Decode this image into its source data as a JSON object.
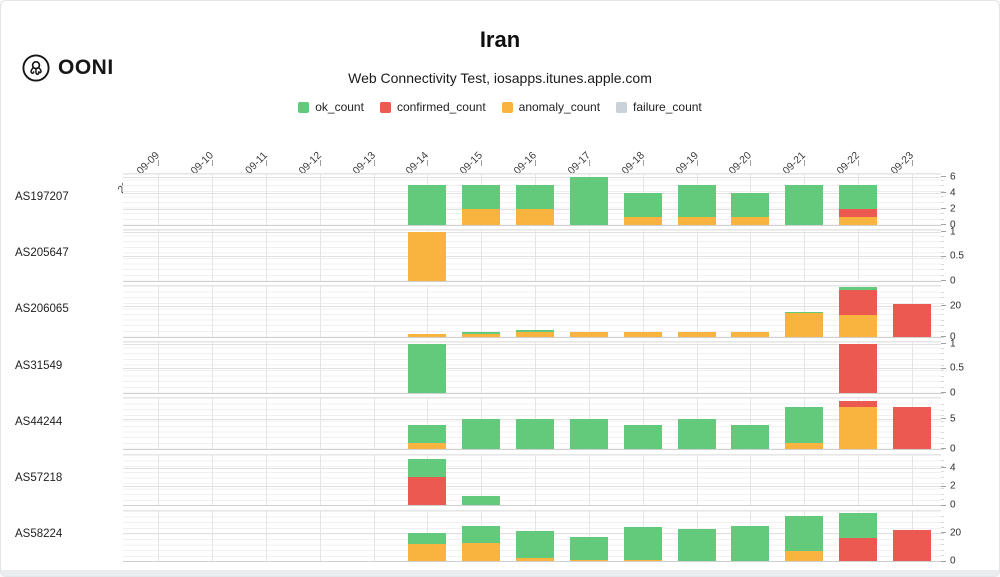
{
  "header": {
    "logo_text": "OONI",
    "title": "Iran",
    "subtitle": "Web Connectivity Test, iosapps.itunes.apple.com"
  },
  "legend": [
    {
      "key": "ok",
      "label": "ok_count",
      "color": "#63c97b"
    },
    {
      "key": "confirmed",
      "label": "confirmed_count",
      "color": "#ec5950"
    },
    {
      "key": "anomaly",
      "label": "anomaly_count",
      "color": "#f9b43f"
    },
    {
      "key": "failure",
      "label": "failure_count",
      "color": "#c9d2d8"
    }
  ],
  "chart_data": {
    "type": "bar",
    "stacked": true,
    "stack_order": [
      "anomaly",
      "confirmed",
      "ok",
      "failure"
    ],
    "legend_position": "top",
    "grid": true,
    "x": [
      "2022-09-09",
      "2022-09-10",
      "2022-09-11",
      "2022-09-12",
      "2022-09-13",
      "2022-09-14",
      "2022-09-15",
      "2022-09-16",
      "2022-09-17",
      "2022-09-18",
      "2022-09-19",
      "2022-09-20",
      "2022-09-21",
      "2022-09-22",
      "2022-09-23"
    ],
    "facets": [
      {
        "label": "AS197207",
        "ymax": 6.37,
        "yticks": [
          0,
          2,
          4,
          6
        ],
        "series": {
          "ok": [
            0,
            0,
            0,
            0,
            0,
            5,
            3,
            3,
            6,
            3,
            4,
            3,
            5,
            3,
            0
          ],
          "confirmed": [
            0,
            0,
            0,
            0,
            0,
            0,
            0,
            0,
            0,
            0,
            0,
            0,
            0,
            1,
            0
          ],
          "anomaly": [
            0,
            0,
            0,
            0,
            0,
            0,
            2,
            2,
            0,
            1,
            1,
            1,
            0,
            1,
            0
          ],
          "failure": [
            0,
            0,
            0,
            0,
            0,
            0,
            0,
            0,
            0,
            0,
            0,
            0,
            0,
            0,
            0
          ]
        }
      },
      {
        "label": "AS205647",
        "ymax": 1.03,
        "yticks": [
          0,
          0.5,
          1
        ],
        "series": {
          "ok": [
            0,
            0,
            0,
            0,
            0,
            0,
            0,
            0,
            0,
            0,
            0,
            0,
            0,
            0,
            0
          ],
          "confirmed": [
            0,
            0,
            0,
            0,
            0,
            0,
            0,
            0,
            0,
            0,
            0,
            0,
            0,
            0,
            0
          ],
          "anomaly": [
            0,
            0,
            0,
            0,
            0,
            1,
            0,
            0,
            0,
            0,
            0,
            0,
            0,
            0,
            0
          ],
          "failure": [
            0,
            0,
            0,
            0,
            0,
            0,
            0,
            0,
            0,
            0,
            0,
            0,
            0,
            0,
            0
          ]
        }
      },
      {
        "label": "AS206065",
        "ymax": 32.5,
        "yticks": [
          0,
          20
        ],
        "series": {
          "ok": [
            0,
            0,
            0,
            0,
            0,
            0,
            1,
            1,
            0,
            0,
            0,
            0,
            1,
            2,
            0
          ],
          "confirmed": [
            0,
            0,
            0,
            0,
            0,
            0,
            0,
            0,
            0,
            0,
            0,
            0,
            0,
            16,
            21
          ],
          "anomaly": [
            0,
            0,
            0,
            0,
            0,
            2,
            2,
            3,
            3,
            3,
            3,
            3,
            15,
            14,
            0
          ],
          "failure": [
            0,
            0,
            0,
            0,
            0,
            0,
            0,
            0,
            0,
            0,
            0,
            0,
            0,
            0,
            0
          ]
        }
      },
      {
        "label": "AS31549",
        "ymax": 1.03,
        "yticks": [
          0,
          0.5,
          1
        ],
        "series": {
          "ok": [
            0,
            0,
            0,
            0,
            0,
            1,
            0,
            0,
            0,
            0,
            0,
            0,
            0,
            0,
            0
          ],
          "confirmed": [
            0,
            0,
            0,
            0,
            0,
            0,
            0,
            0,
            0,
            0,
            0,
            0,
            0,
            1,
            0
          ],
          "anomaly": [
            0,
            0,
            0,
            0,
            0,
            0,
            0,
            0,
            0,
            0,
            0,
            0,
            0,
            0,
            0
          ],
          "failure": [
            0,
            0,
            0,
            0,
            0,
            0,
            0,
            0,
            0,
            0,
            0,
            0,
            0,
            0,
            0
          ]
        }
      },
      {
        "label": "AS44244",
        "ymax": 8.4,
        "yticks": [
          0,
          5
        ],
        "series": {
          "ok": [
            0,
            0,
            0,
            0,
            0,
            3,
            5,
            5,
            5,
            4,
            5,
            4,
            6,
            0,
            0
          ],
          "confirmed": [
            0,
            0,
            0,
            0,
            0,
            0,
            0,
            0,
            0,
            0,
            0,
            0,
            0,
            1,
            7
          ],
          "anomaly": [
            0,
            0,
            0,
            0,
            0,
            1,
            0,
            0,
            0,
            0,
            0,
            0,
            1,
            7,
            0
          ],
          "failure": [
            0,
            0,
            0,
            0,
            0,
            0,
            0,
            0,
            0,
            0,
            0,
            0,
            0,
            0,
            0
          ]
        }
      },
      {
        "label": "AS57218",
        "ymax": 5.45,
        "yticks": [
          0,
          2,
          4
        ],
        "series": {
          "ok": [
            0,
            0,
            0,
            0,
            0,
            2,
            1,
            0,
            0,
            0,
            0,
            0,
            0,
            0,
            0
          ],
          "confirmed": [
            0,
            0,
            0,
            0,
            0,
            3,
            0,
            0,
            0,
            0,
            0,
            0,
            0,
            0,
            0
          ],
          "anomaly": [
            0,
            0,
            0,
            0,
            0,
            0,
            0,
            0,
            0,
            0,
            0,
            0,
            0,
            0,
            0
          ],
          "failure": [
            0,
            0,
            0,
            0,
            0,
            0,
            0,
            0,
            0,
            0,
            0,
            0,
            0,
            0,
            0
          ]
        }
      },
      {
        "label": "AS58224",
        "ymax": 35.7,
        "yticks": [
          0,
          20
        ],
        "series": {
          "ok": [
            0,
            0,
            0,
            0,
            0,
            8,
            12,
            19,
            16,
            23,
            23,
            25,
            25,
            18,
            0
          ],
          "confirmed": [
            0,
            0,
            0,
            0,
            0,
            0,
            0,
            0,
            0,
            0,
            0,
            0,
            0,
            16,
            22
          ],
          "anomaly": [
            0,
            0,
            0,
            0,
            0,
            12,
            13,
            2,
            1,
            1,
            0,
            0,
            7,
            0,
            0
          ],
          "failure": [
            0,
            0,
            0,
            0,
            0,
            0,
            0,
            0,
            0,
            0,
            0,
            0,
            0,
            0,
            0
          ]
        }
      }
    ]
  }
}
